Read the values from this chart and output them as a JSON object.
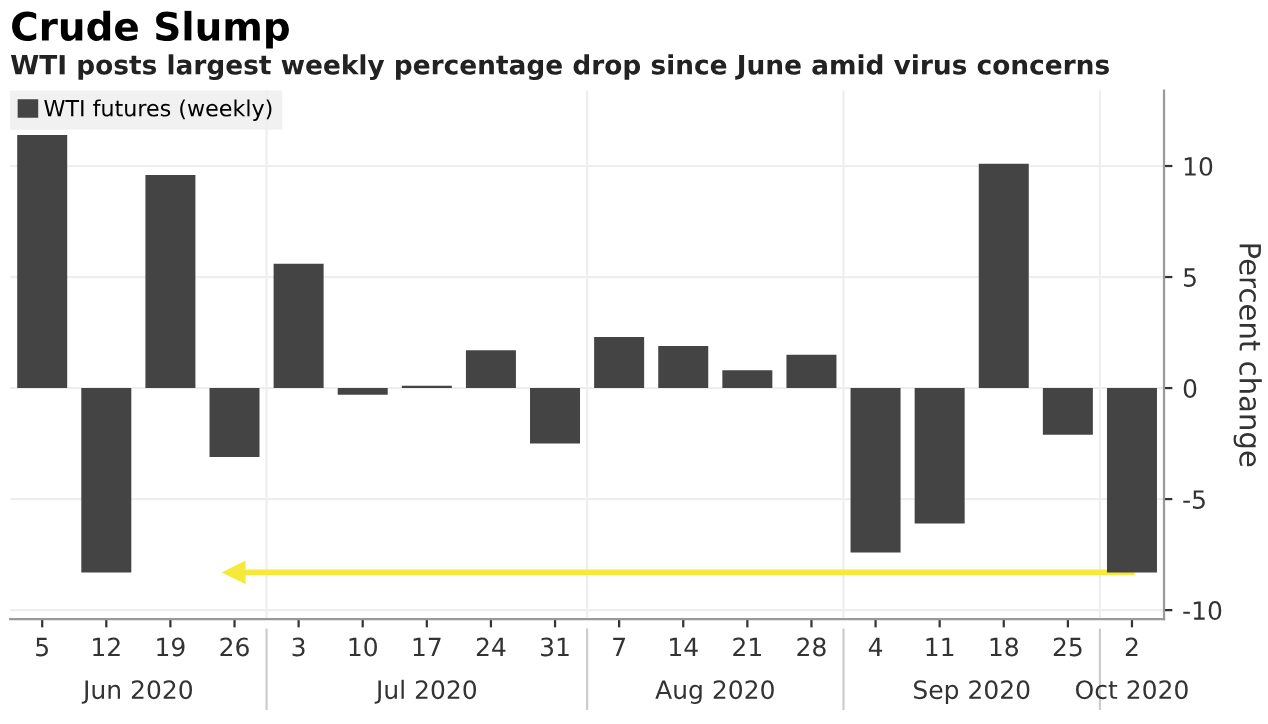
{
  "chart_data": {
    "type": "bar",
    "title": "Crude Slump",
    "subtitle": "WTI posts largest weekly percentage drop since June amid virus concerns",
    "ylabel": "Percent change",
    "categories": [
      "5",
      "12",
      "19",
      "26",
      "3",
      "10",
      "17",
      "24",
      "31",
      "7",
      "14",
      "21",
      "28",
      "4",
      "11",
      "18",
      "25",
      "2"
    ],
    "series": [
      {
        "name": "WTI futures (weekly)",
        "color": "#444444",
        "values": [
          11.4,
          -8.3,
          9.6,
          -3.1,
          5.6,
          -0.3,
          0.1,
          1.7,
          -2.5,
          2.3,
          1.9,
          0.8,
          1.5,
          -7.4,
          -6.1,
          10.1,
          -2.1,
          -8.3
        ]
      },
      {
        "type": "line",
        "color": "#f5ea3c",
        "x": [
          "26",
          "2"
        ],
        "values": [
          -8.3,
          -8.3
        ]
      }
    ],
    "ylim": [
      -10.4,
      13.4
    ],
    "yticks": [
      -10,
      -5,
      0,
      5,
      10
    ],
    "grid": "y",
    "legend": "top left",
    "annotations": [
      "Jun 2020",
      "Jul 2020",
      "Aug 2020",
      "Sep 2020",
      "Oct 2020"
    ]
  }
}
